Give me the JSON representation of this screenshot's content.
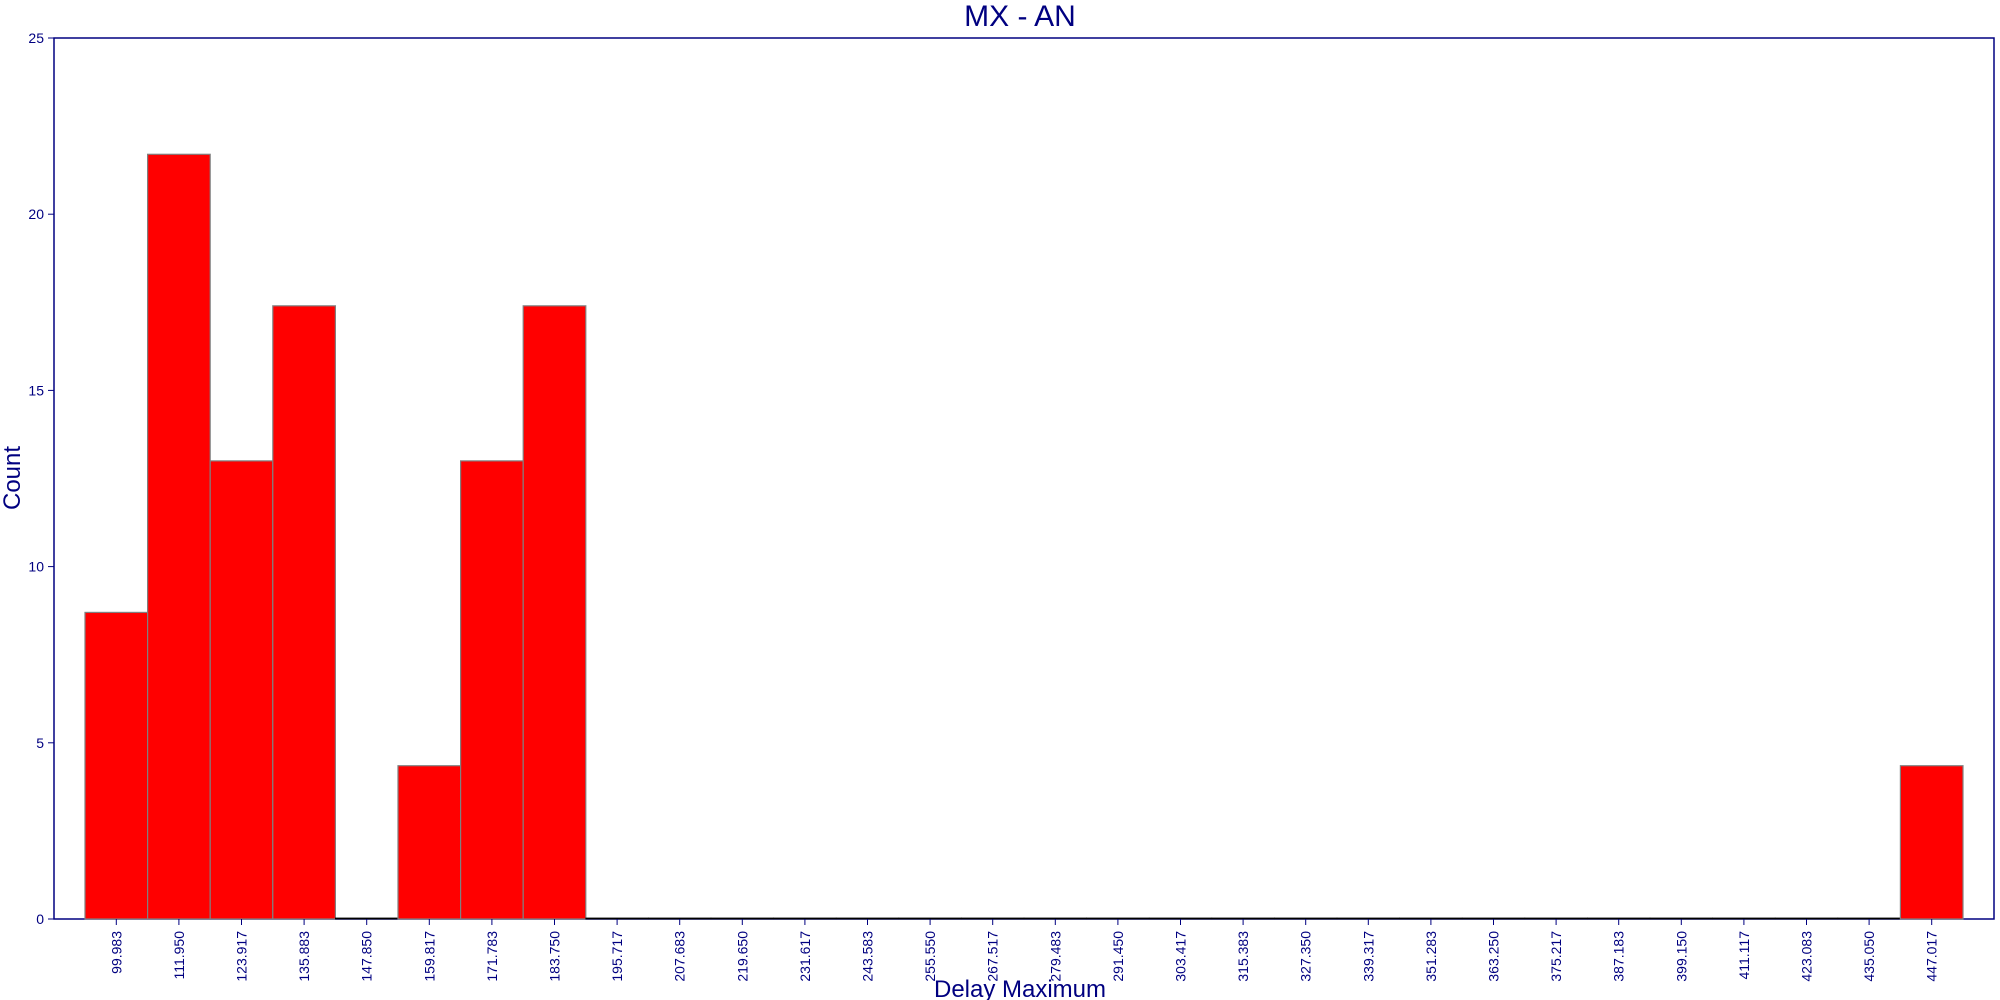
{
  "chart_data": {
    "type": "bar",
    "title": "MX - AN",
    "xlabel": "Delay Maximum",
    "ylabel": "Count",
    "ylim": [
      0,
      25
    ],
    "yticks": [
      "0",
      "5",
      "10",
      "15",
      "20",
      "25"
    ],
    "categories": [
      "99.983",
      "111.950",
      "123.917",
      "135.883",
      "147.850",
      "159.817",
      "171.783",
      "183.750",
      "195.717",
      "207.683",
      "219.650",
      "231.617",
      "243.583",
      "255.550",
      "267.517",
      "279.483",
      "291.450",
      "303.417",
      "315.383",
      "327.350",
      "339.317",
      "351.283",
      "363.250",
      "375.217",
      "387.183",
      "399.150",
      "411.117",
      "423.083",
      "435.050",
      "447.017"
    ],
    "values": [
      8.7,
      21.7,
      13.0,
      17.4,
      0,
      4.35,
      13.0,
      17.4,
      0,
      0,
      0,
      0,
      0,
      0,
      0,
      0,
      0,
      0,
      0,
      0,
      0,
      0,
      0,
      0,
      0,
      0,
      0,
      0,
      0,
      4.35
    ],
    "bar_color": "#ff0000",
    "axis_color": "#000080",
    "grid": false,
    "legend": false
  }
}
